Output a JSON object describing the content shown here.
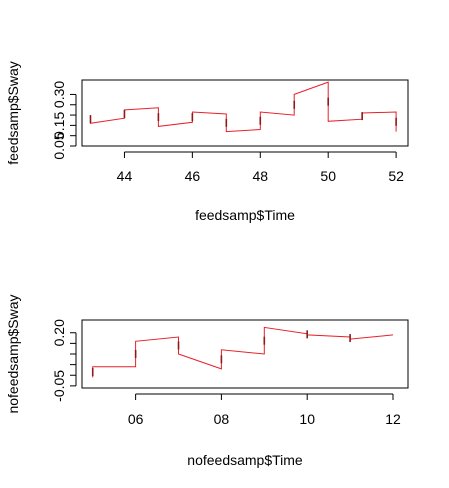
{
  "chart_data": [
    {
      "type": "line",
      "xlabel": "feedsamp$Time",
      "ylabel": "feedsamp$Sway",
      "xticks": [
        44,
        46,
        48,
        50,
        52
      ],
      "yticks": [
        0.05,
        0.3
      ],
      "yticks_minor": [
        0.1,
        0.15,
        0.2,
        0.25
      ],
      "yticks_labeled": [
        "0.05",
        "0.15",
        "0.30"
      ],
      "xlim": [
        42.75,
        52.35
      ],
      "ylim": [
        0.05,
        0.37
      ],
      "line_color": "#e8202a",
      "x": [
        43.0,
        43.0,
        44.0,
        44.0,
        45.0,
        45.0,
        46.0,
        46.0,
        47.0,
        47.0,
        48.0,
        48.0,
        49.0,
        49.0,
        50.0,
        50.0,
        51.0,
        51.0,
        52.0,
        52.0
      ],
      "y": [
        0.2,
        0.16,
        0.185,
        0.225,
        0.235,
        0.145,
        0.165,
        0.215,
        0.205,
        0.12,
        0.13,
        0.215,
        0.2,
        0.3,
        0.36,
        0.17,
        0.18,
        0.21,
        0.215,
        0.12
      ]
    },
    {
      "type": "line",
      "xlabel": "nofeedsamp$Time",
      "ylabel": "nofeedsamp$Sway",
      "xticks": [
        6,
        8,
        10,
        12
      ],
      "yticks": [
        -0.05,
        0.2
      ],
      "yticks_minor": [
        0.0,
        0.05,
        0.1,
        0.15
      ],
      "yticks_labeled": [
        "-0.05",
        "0.20"
      ],
      "xlim": [
        4.75,
        12.35
      ],
      "ylim": [
        -0.06,
        0.26
      ],
      "line_color": "#e8202a",
      "x": [
        5.0,
        5.0,
        6.0,
        6.0,
        7.0,
        7.0,
        8.0,
        8.0,
        9.0,
        9.0,
        10.0,
        10.0,
        11.0,
        11.0,
        12.0
      ],
      "y": [
        -0.01,
        0.04,
        0.04,
        0.16,
        0.18,
        0.1,
        0.03,
        0.12,
        0.1,
        0.225,
        0.195,
        0.19,
        0.18,
        0.17,
        0.19
      ]
    }
  ]
}
